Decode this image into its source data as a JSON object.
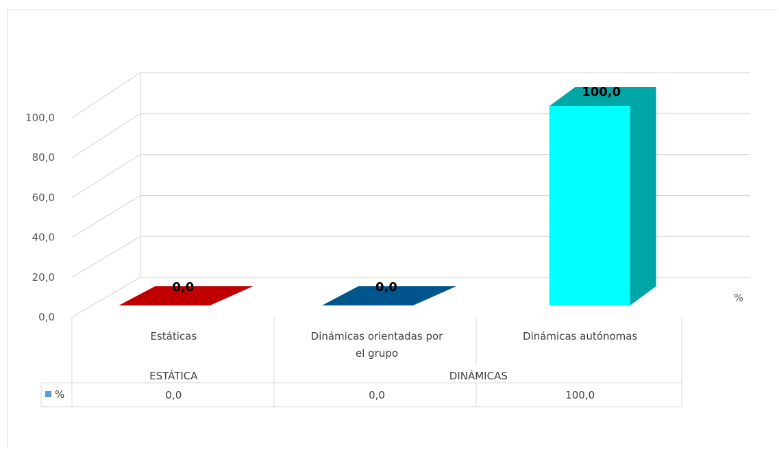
{
  "chart_data": {
    "type": "bar",
    "style": "3d-column-with-data-table",
    "categories": [
      "Estáticas",
      "Dinámicas orientadas por el grupo",
      "Dinámicas autónomas"
    ],
    "category_lines": [
      [
        "Estáticas"
      ],
      [
        "Dinámicas orientadas por",
        "el grupo"
      ],
      [
        "Dinámicas autónomas"
      ]
    ],
    "groups": [
      {
        "label": "ESTÁTICA",
        "span": 1
      },
      {
        "label": "DINÁMICAS",
        "span": 2
      }
    ],
    "series": [
      {
        "name": "%",
        "values": [
          0.0,
          0.0,
          100.0
        ],
        "value_labels": [
          "0,0",
          "0,0",
          "100,0"
        ]
      }
    ],
    "bar_colors": [
      "#c00000",
      "#00558c",
      "#00ffff"
    ],
    "side_colors": [
      "#8b0000",
      "#003a66",
      "#00a6a6"
    ],
    "legend_marker_color": "#5b9bd5",
    "depth_axis_label": "%",
    "yticks": [
      "0,0",
      "20,0",
      "40,0",
      "60,0",
      "80,0",
      "100,0"
    ],
    "ylim": [
      0,
      100
    ],
    "grid": true,
    "title": "",
    "xlabel": "",
    "ylabel": ""
  }
}
